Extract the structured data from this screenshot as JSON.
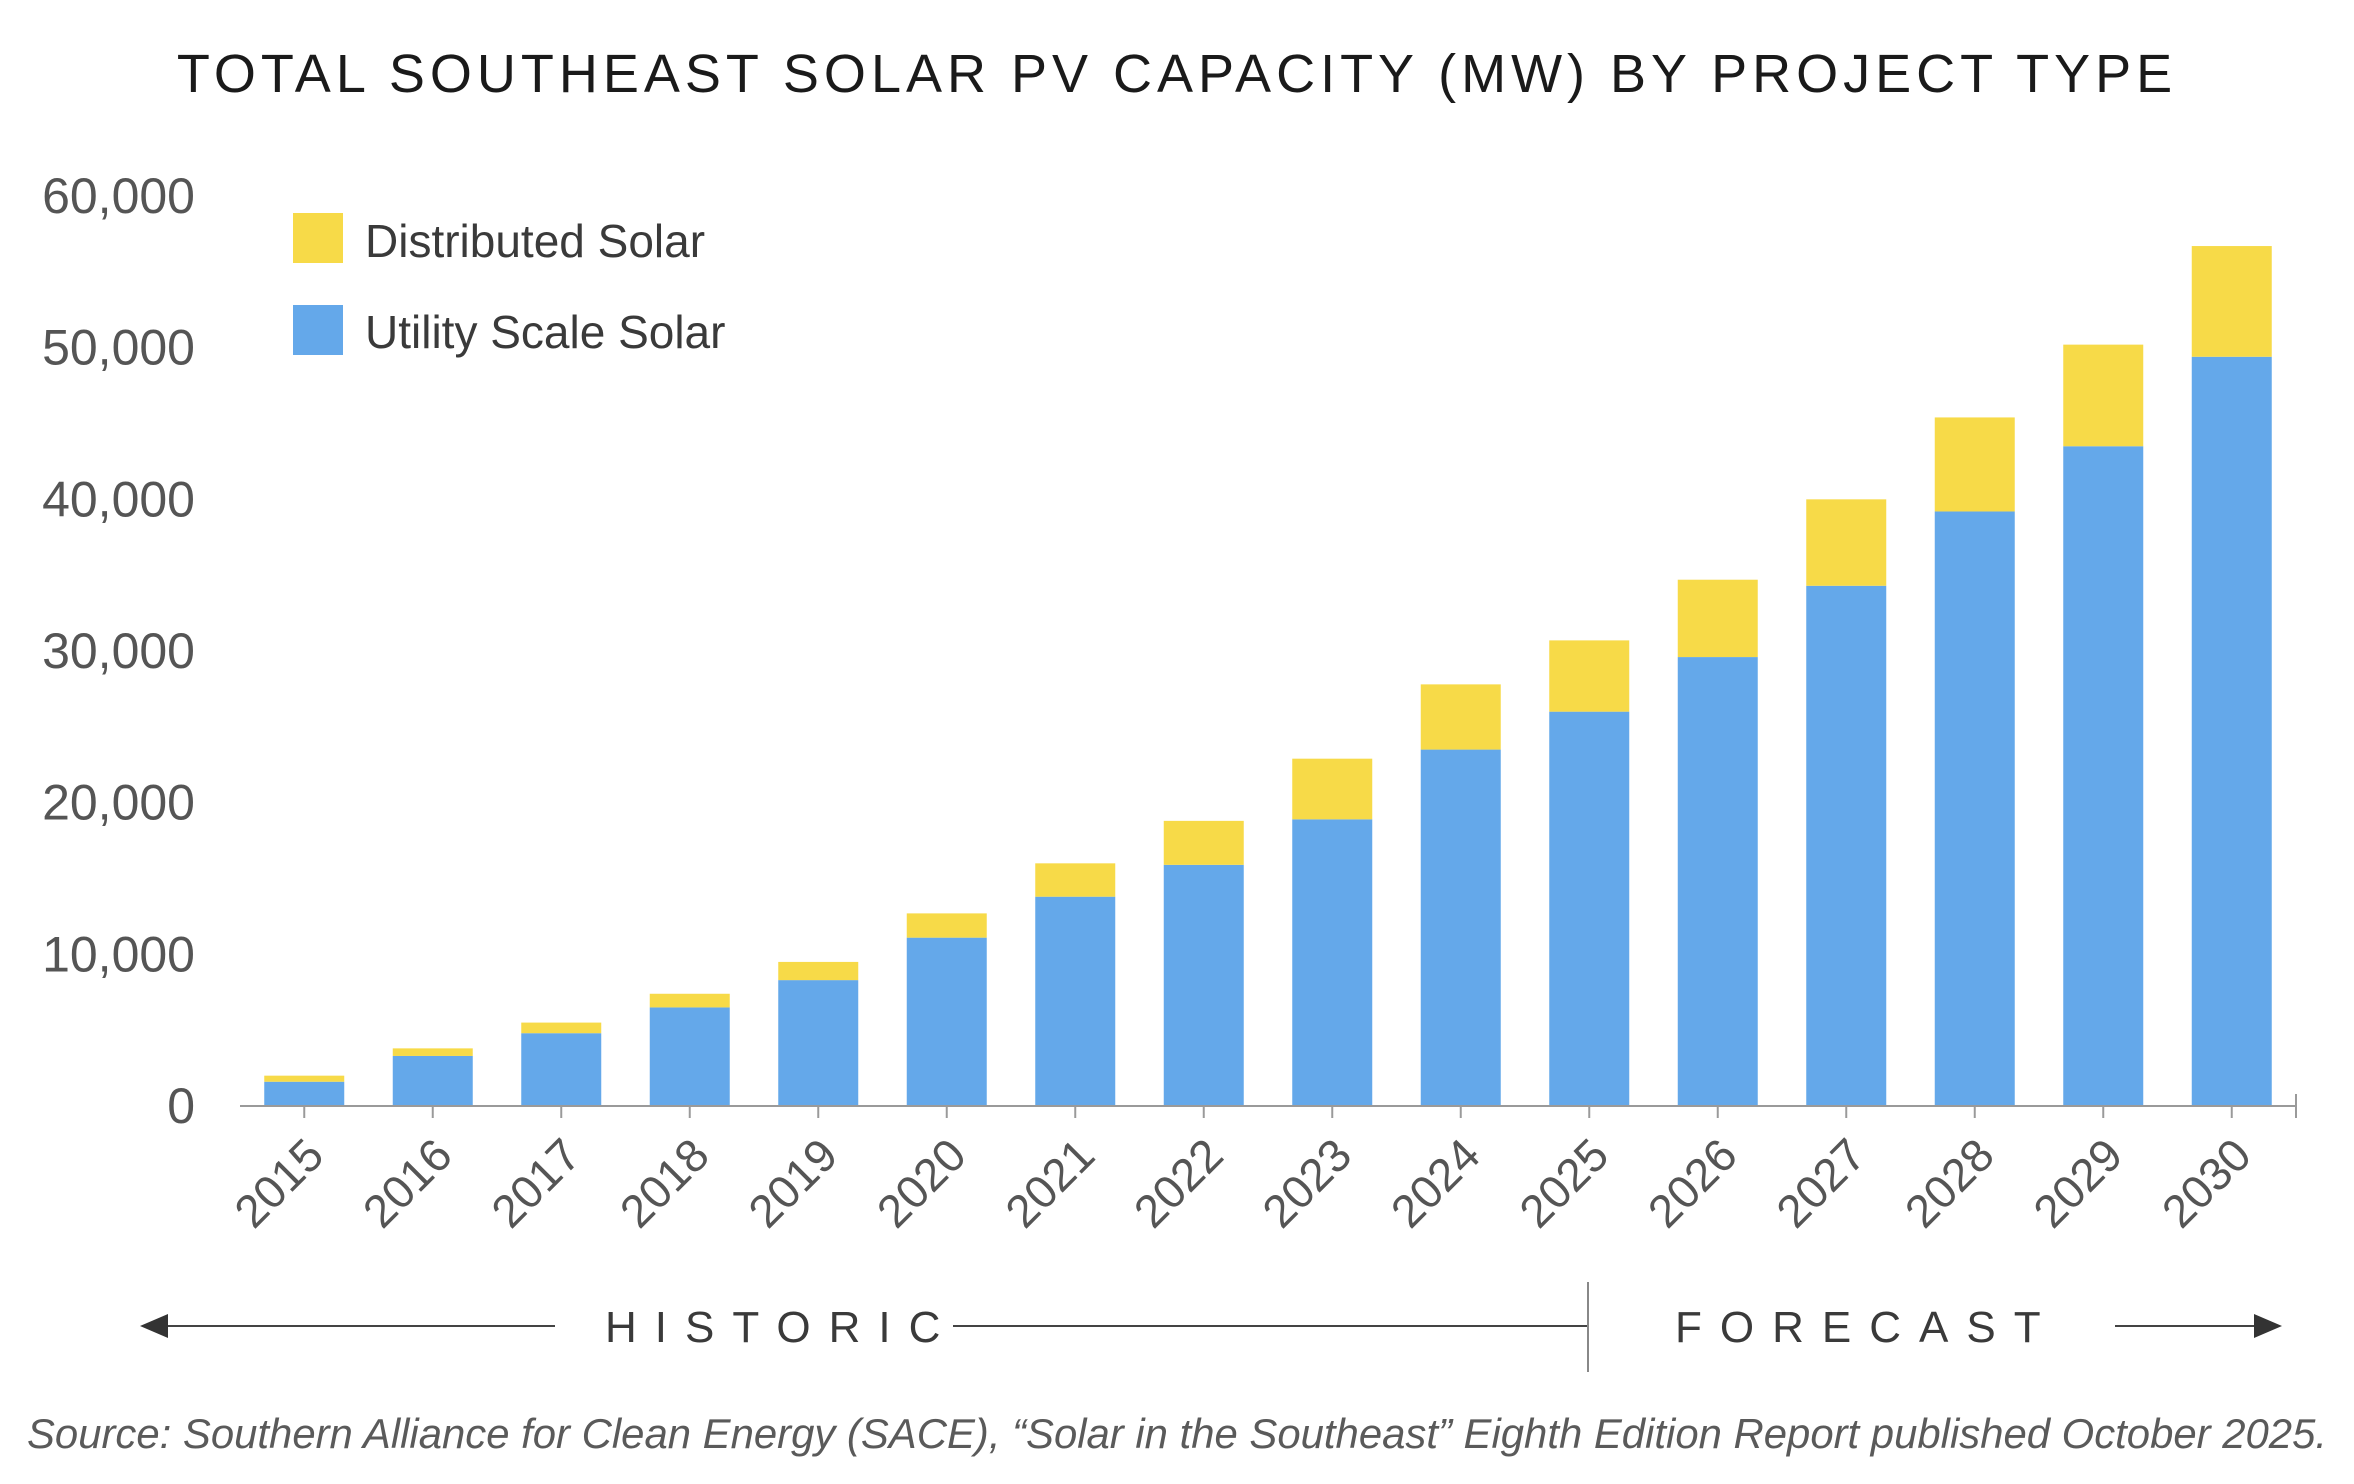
{
  "chart_data": {
    "type": "bar",
    "stacked": true,
    "title": "TOTAL SOUTHEAST SOLAR PV CAPACITY (MW) BY PROJECT TYPE",
    "categories": [
      "2015",
      "2016",
      "2017",
      "2018",
      "2019",
      "2020",
      "2021",
      "2022",
      "2023",
      "2024",
      "2025",
      "2026",
      "2027",
      "2028",
      "2029",
      "2030"
    ],
    "series": [
      {
        "name": "Utility Scale Solar",
        "color": "#64a8ea",
        "values": [
          1600,
          3300,
          4800,
          6500,
          8300,
          11100,
          13800,
          15900,
          18900,
          23500,
          26000,
          29600,
          34300,
          39200,
          43500,
          49400
        ]
      },
      {
        "name": "Distributed Solar",
        "color": "#f7da48",
        "values": [
          400,
          500,
          700,
          900,
          1200,
          1600,
          2200,
          2900,
          4000,
          4300,
          4700,
          5100,
          5700,
          6200,
          6700,
          7300
        ]
      }
    ],
    "legend_order": [
      "Distributed Solar",
      "Utility Scale Solar"
    ],
    "legend_position": "top-left",
    "yticks": [
      "0",
      "10,000",
      "20,000",
      "30,000",
      "40,000",
      "50,000",
      "60,000"
    ],
    "ylim": [
      0,
      60000
    ],
    "xlabel": "",
    "ylabel": "",
    "periods": {
      "historic": "HISTORIC",
      "forecast": "FORECAST"
    },
    "source": "Source: Southern Alliance for Clean Energy (SACE), “Solar in the Southeast” Eighth Edition Report published October 2025."
  }
}
